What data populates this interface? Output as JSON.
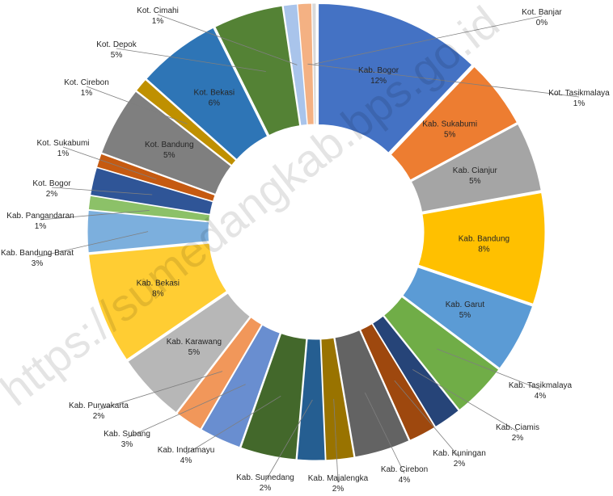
{
  "chart_data": {
    "type": "pie",
    "variant": "donut",
    "title": "",
    "legend": "none",
    "slices": [
      {
        "label": "Kab. Bogor",
        "value": 12,
        "pct": "12%",
        "color": "#4472C4"
      },
      {
        "label": "Kab. Sukabumi",
        "value": 5,
        "pct": "5%",
        "color": "#ED7D31"
      },
      {
        "label": "Kab. Cianjur",
        "value": 5,
        "pct": "5%",
        "color": "#A5A5A5"
      },
      {
        "label": "Kab. Bandung",
        "value": 8,
        "pct": "8%",
        "color": "#FFC000"
      },
      {
        "label": "Kab. Garut",
        "value": 5,
        "pct": "5%",
        "color": "#5B9BD5"
      },
      {
        "label": "Kab. Tasikmalaya",
        "value": 4,
        "pct": "4%",
        "color": "#70AD47"
      },
      {
        "label": "Kab. Ciamis",
        "value": 2,
        "pct": "2%",
        "color": "#264478"
      },
      {
        "label": "Kab. Kuningan",
        "value": 2,
        "pct": "2%",
        "color": "#9E480E"
      },
      {
        "label": "Kab. Cirebon",
        "value": 4,
        "pct": "4%",
        "color": "#636363"
      },
      {
        "label": "Kab. Majalengka",
        "value": 2,
        "pct": "2%",
        "color": "#997300"
      },
      {
        "label": "Kab. Sumedang",
        "value": 2,
        "pct": "2%",
        "color": "#255E91"
      },
      {
        "label": "Kab. Indramayu",
        "value": 4,
        "pct": "4%",
        "color": "#43682B"
      },
      {
        "label": "Kab. Subang",
        "value": 3,
        "pct": "3%",
        "color": "#698ED0"
      },
      {
        "label": "Kab. Purwakarta",
        "value": 2,
        "pct": "2%",
        "color": "#F1975A"
      },
      {
        "label": "Kab. Karawang",
        "value": 5,
        "pct": "5%",
        "color": "#B7B7B7"
      },
      {
        "label": "Kab. Bekasi",
        "value": 8,
        "pct": "8%",
        "color": "#FFCD33"
      },
      {
        "label": "Kab. Bandung Barat",
        "value": 3,
        "pct": "3%",
        "color": "#7CAFDD"
      },
      {
        "label": "Kab. Pangandaran",
        "value": 1,
        "pct": "1%",
        "color": "#8CC168"
      },
      {
        "label": "Kot. Bogor",
        "value": 2,
        "pct": "2%",
        "color": "#2F5597"
      },
      {
        "label": "Kot. Sukabumi",
        "value": 1,
        "pct": "1%",
        "color": "#C55A11"
      },
      {
        "label": "Kot. Bandung",
        "value": 5,
        "pct": "5%",
        "color": "#7F7F7F"
      },
      {
        "label": "Kot. Cirebon",
        "value": 1,
        "pct": "1%",
        "color": "#BF9000"
      },
      {
        "label": "Kot. Bekasi",
        "value": 6,
        "pct": "6%",
        "color": "#2E75B6"
      },
      {
        "label": "Kot. Depok",
        "value": 5,
        "pct": "5%",
        "color": "#548235"
      },
      {
        "label": "Kot. Cimahi",
        "value": 1,
        "pct": "1%",
        "color": "#A9C4EB"
      },
      {
        "label": "Kot. Tasikmalaya",
        "value": 1,
        "pct": "1%",
        "color": "#F4B183"
      },
      {
        "label": "Kot. Banjar",
        "value": 0.3,
        "pct": "0%",
        "color": "#D9D9D9"
      }
    ]
  },
  "watermark": "https://sumedangkab.bps.go.id"
}
